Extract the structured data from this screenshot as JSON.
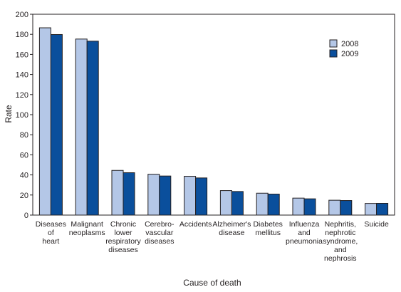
{
  "chart_data": {
    "type": "bar",
    "title": "",
    "xlabel": "Cause of death",
    "ylabel": "Rate",
    "ylim": [
      0,
      200
    ],
    "yticks": [
      0,
      20,
      40,
      60,
      80,
      100,
      120,
      140,
      160,
      180,
      200
    ],
    "grid": false,
    "legend_position": "top-right",
    "categories": [
      [
        "Diseases",
        "of",
        "heart"
      ],
      [
        "Malignant",
        "neoplasms"
      ],
      [
        "Chronic",
        "lower",
        "respiratory",
        "diseases"
      ],
      [
        "Cerebro-",
        "vascular",
        "diseases"
      ],
      [
        "Accidents"
      ],
      [
        "Alzheimer's",
        "disease"
      ],
      [
        "Diabetes",
        "mellitus"
      ],
      [
        "Influenza",
        "and",
        "pneumonia"
      ],
      [
        "Nephritis,",
        "nephrotic",
        "syndrome,",
        "and",
        "nephrosis"
      ],
      [
        "Suicide"
      ]
    ],
    "series": [
      {
        "name": "2008",
        "color": "#b4c7e7",
        "values": [
          186.5,
          175.3,
          44.5,
          40.7,
          38.6,
          24.4,
          21.8,
          16.9,
          14.8,
          11.6
        ]
      },
      {
        "name": "2009",
        "color": "#0a4f9c",
        "values": [
          179.8,
          173.2,
          42.2,
          38.9,
          37.0,
          23.5,
          20.9,
          16.2,
          14.5,
          11.7
        ]
      }
    ]
  }
}
